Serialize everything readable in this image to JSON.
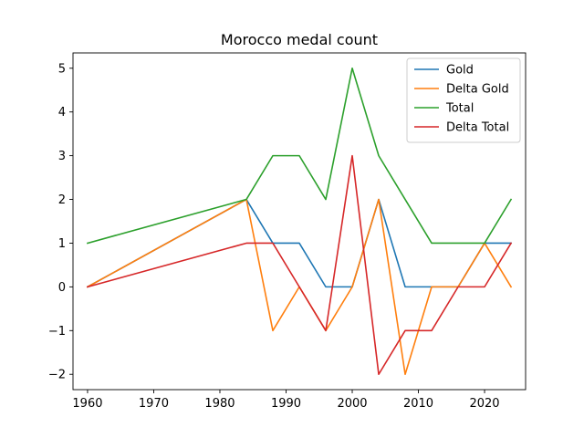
{
  "chart_data": {
    "type": "line",
    "title": "Morocco medal count",
    "xlabel": "",
    "ylabel": "",
    "x": [
      1960,
      1984,
      1988,
      1992,
      1996,
      2000,
      2004,
      2008,
      2012,
      2016,
      2020,
      2024
    ],
    "xlim": [
      1957.8,
      2026.2
    ],
    "ylim": [
      -2.35,
      5.35
    ],
    "xticks": [
      1960,
      1970,
      1980,
      1990,
      2000,
      2010,
      2020
    ],
    "yticks": [
      -2,
      -1,
      0,
      1,
      2,
      3,
      4,
      5
    ],
    "ytick_labels": [
      "−2",
      "−1",
      "0",
      "1",
      "2",
      "3",
      "4",
      "5"
    ],
    "grid": false,
    "legend_position": "upper right",
    "series": [
      {
        "name": "Gold",
        "color": "#1f77b4",
        "values": [
          0,
          2,
          1,
          1,
          0,
          0,
          2,
          0,
          0,
          0,
          1,
          1
        ]
      },
      {
        "name": "Delta Gold",
        "color": "#ff7f0e",
        "values": [
          0,
          2,
          -1,
          0,
          -1,
          0,
          2,
          -2,
          0,
          0,
          1,
          0
        ]
      },
      {
        "name": "Total",
        "color": "#2ca02c",
        "values": [
          1,
          2,
          3,
          3,
          2,
          5,
          3,
          2,
          1,
          1,
          1,
          2
        ]
      },
      {
        "name": "Delta Total",
        "color": "#d62728",
        "values": [
          0,
          1,
          1,
          0,
          -1,
          3,
          -2,
          -1,
          -1,
          0,
          0,
          1
        ]
      }
    ]
  }
}
